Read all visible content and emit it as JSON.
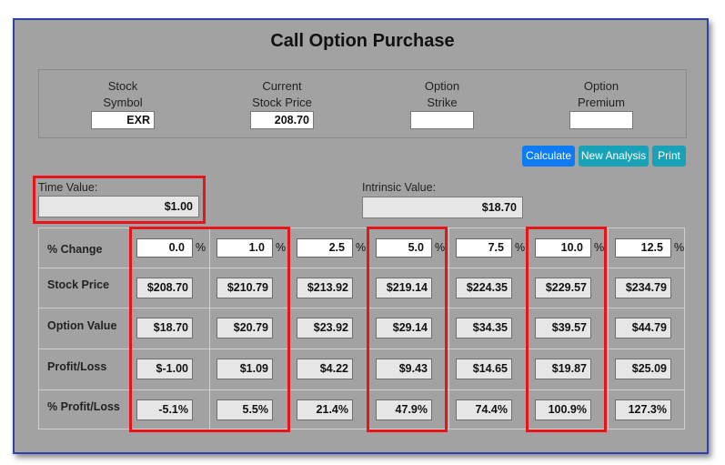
{
  "title": "Call Option Purchase",
  "inputs": {
    "stock_symbol": {
      "label1": "Stock",
      "label2": "Symbol",
      "value": "EXR"
    },
    "current_price": {
      "label1": "Current",
      "label2": "Stock Price",
      "value": "208.70"
    },
    "option_strike": {
      "label1": "Option",
      "label2": "Strike",
      "value": ""
    },
    "option_premium": {
      "label1": "Option",
      "label2": "Premium",
      "value": ""
    }
  },
  "buttons": {
    "calculate": "Calculate",
    "new_analysis": "New Analysis",
    "print": "Print"
  },
  "time_value": {
    "label": "Time Value:",
    "value": "$1.00"
  },
  "intrinsic_value": {
    "label": "Intrinsic Value:",
    "value": "$18.70"
  },
  "table": {
    "row_labels": [
      "% Change",
      "Stock Price",
      "Option Value",
      "Profit/Loss",
      "% Profit/Loss"
    ],
    "pct_symbol": "%",
    "pct_change": [
      "0.0",
      "1.0",
      "2.5",
      "5.0",
      "7.5",
      "10.0",
      "12.5"
    ],
    "stock_price": [
      "$208.70",
      "$210.79",
      "$213.92",
      "$219.14",
      "$224.35",
      "$229.57",
      "$234.79"
    ],
    "option_value": [
      "$18.70",
      "$20.79",
      "$23.92",
      "$29.14",
      "$34.35",
      "$39.57",
      "$44.79"
    ],
    "profit_loss": [
      "$-1.00",
      "$1.09",
      "$4.22",
      "$9.43",
      "$14.65",
      "$19.87",
      "$25.09"
    ],
    "pct_profit_loss": [
      "-5.1%",
      "5.5%",
      "21.4%",
      "47.9%",
      "74.4%",
      "100.9%",
      "127.3%"
    ]
  },
  "colors": {
    "highlight": "#e8141a",
    "calculate_button": "#0d7bf5",
    "teal_button": "#17a2b8",
    "panel": "#a2a2a2"
  }
}
